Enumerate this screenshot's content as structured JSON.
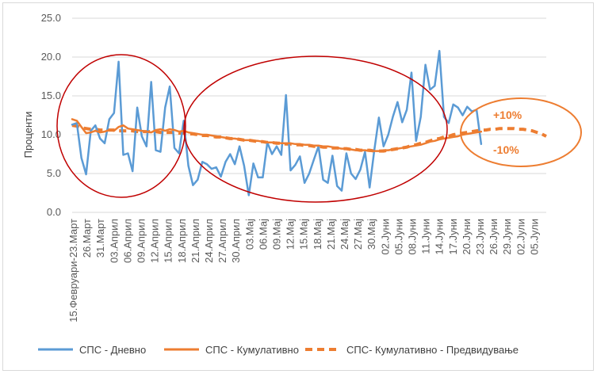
{
  "chart_data": {
    "type": "line",
    "ylabel": "Проценти",
    "ylim": [
      0,
      25
    ],
    "yticks": [
      "0.0",
      "5.0",
      "10.0",
      "15.0",
      "20.0",
      "25.0"
    ],
    "x_tick_labels": [
      "15.Февруари-23.Март",
      "26.Март",
      "31.Март",
      "03.Април",
      "06.Април",
      "09.Април",
      "12.Април",
      "15.Април",
      "18.Април",
      "21.Април",
      "24.Април",
      "27.Април",
      "30.Април",
      "03.Мај",
      "06.Мај",
      "09.Мај",
      "12.Мај",
      "15.Мај",
      "18.Мај",
      "21.Мај",
      "24.Мај",
      "27.Мај",
      "30.Мај",
      "02.Јуни",
      "05.Јуни",
      "08.Јуни",
      "11.Јуни",
      "14.Јуни",
      "17.Јуни",
      "20.Јуни",
      "23.Јуни",
      "26.Јуни",
      "29.Јуни",
      "02.Јули",
      "05.Јули"
    ],
    "n_points": 103,
    "series": [
      {
        "name": "СПС - Дневно",
        "color": "#5b9bd5",
        "style": "solid",
        "values": [
          11.3,
          11.5,
          7.0,
          4.9,
          10.5,
          11.2,
          9.5,
          8.9,
          12.0,
          12.8,
          19.4,
          7.4,
          7.6,
          5.3,
          13.5,
          9.8,
          8.5,
          16.8,
          8.0,
          7.8,
          13.5,
          16.2,
          8.3,
          7.6,
          11.8,
          6.0,
          3.5,
          4.2,
          6.5,
          6.2,
          5.6,
          5.8,
          4.6,
          6.5,
          7.5,
          6.2,
          8.5,
          6.0,
          2.2,
          6.3,
          4.5,
          4.5,
          9.0,
          7.5,
          8.5,
          7.4,
          15.1,
          5.4,
          6.1,
          7.2,
          3.8,
          5.0,
          6.8,
          8.5,
          4.2,
          3.8,
          7.3,
          3.4,
          2.8,
          7.6,
          5.0,
          4.3,
          5.5,
          7.8,
          3.2,
          8.0,
          12.2,
          8.5,
          10.0,
          12.3,
          14.2,
          11.6,
          13.2,
          18.0,
          9.2,
          12.3,
          19.0,
          15.8,
          16.3,
          20.8,
          12.3,
          11.5,
          13.9,
          13.5,
          12.5,
          13.6,
          13.0,
          13.2,
          8.8
        ],
        "cumulative_values": null
      },
      {
        "name": "СПС - Кумулативно",
        "color": "#ed7d31",
        "style": "solid",
        "values": [
          12.0,
          11.8,
          11.0,
          10.2,
          10.3,
          10.5,
          10.3,
          10.4,
          10.6,
          10.5,
          11.0,
          11.2,
          10.8,
          10.7,
          10.6,
          10.5,
          10.4,
          10.3,
          10.6,
          10.7,
          10.5,
          10.7,
          10.6,
          10.4,
          10.5,
          10.3,
          10.2,
          10.1,
          10.0,
          10.0,
          9.9,
          9.8,
          9.7,
          9.6,
          9.5,
          9.5,
          9.4,
          9.3,
          9.3,
          9.2,
          9.2,
          9.1,
          9.0,
          9.0,
          9.0,
          8.9,
          8.9,
          8.9,
          8.8,
          8.8,
          8.7,
          8.7,
          8.6,
          8.6,
          8.5,
          8.5,
          8.4,
          8.3,
          8.2,
          8.2,
          8.1,
          8.0,
          8.0,
          8.0,
          7.9,
          7.9,
          7.9,
          8.0,
          8.0,
          8.1,
          8.2,
          8.3,
          8.4,
          8.5,
          8.6,
          8.7,
          8.9,
          9.1,
          9.2,
          9.4,
          9.5,
          9.6,
          9.7,
          9.8,
          10.0,
          10.1,
          10.2,
          10.3,
          10.4
        ]
      },
      {
        "name": "СПС- Кумулативно - Предвидување",
        "color": "#ed7d31",
        "style": "dashed",
        "values": [
          11.2,
          11.1,
          10.9,
          10.8,
          10.7,
          10.7,
          10.6,
          10.6,
          10.6,
          10.6,
          10.5,
          10.5,
          10.5,
          10.5,
          10.4,
          10.4,
          10.4,
          10.4,
          10.4,
          10.3,
          10.3,
          10.3,
          10.3,
          10.2,
          10.2,
          10.1,
          10.1,
          10.0,
          9.9,
          9.9,
          9.8,
          9.7,
          9.7,
          9.6,
          9.5,
          9.5,
          9.4,
          9.3,
          9.3,
          9.2,
          9.1,
          9.1,
          9.0,
          9.0,
          8.9,
          8.9,
          8.8,
          8.8,
          8.7,
          8.7,
          8.6,
          8.6,
          8.5,
          8.5,
          8.4,
          8.4,
          8.3,
          8.3,
          8.2,
          8.2,
          8.1,
          8.1,
          8.0,
          8.0,
          8.0,
          7.9,
          7.9,
          7.9,
          8.0,
          8.1,
          8.2,
          8.3,
          8.4,
          8.6,
          8.7,
          8.9,
          9.0,
          9.2,
          9.4,
          9.5,
          9.7,
          9.8,
          10.0,
          10.1,
          10.2,
          10.3,
          10.4,
          10.5,
          10.6,
          10.6,
          10.7,
          10.7,
          10.8,
          10.8,
          10.8,
          10.8,
          10.7,
          10.7,
          10.6,
          10.5,
          10.3,
          10.1,
          9.8
        ]
      }
    ],
    "annotations": [
      "+10%",
      "-10%"
    ],
    "legend": "bottom",
    "grid": true
  }
}
